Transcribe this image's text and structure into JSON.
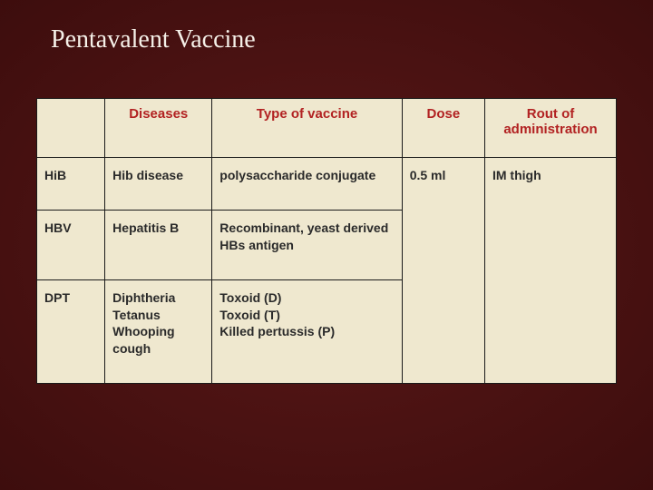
{
  "title": "Pentavalent Vaccine",
  "headers": {
    "c0": "",
    "c1": "Diseases",
    "c2": "Type of vaccine",
    "c3": "Dose",
    "c4": "Rout of administration"
  },
  "rows": {
    "r0": {
      "abbr": "HiB",
      "disease": "Hib disease",
      "type": "polysaccharide conjugate",
      "dose": "0.5 ml",
      "route": "IM thigh"
    },
    "r1": {
      "abbr": "HBV",
      "disease": "Hepatitis B",
      "type": "Recombinant, yeast derived HBs antigen"
    },
    "r2": {
      "abbr": "DPT",
      "disease": "Diphtheria Tetanus Whooping cough",
      "type": "Toxoid (D)\nToxoid (T)\nKilled pertussis (P)"
    }
  },
  "style": {
    "header_text_color": "#b22222",
    "cell_text_color": "#2a2a2a",
    "cell_bg": "#efe8cf",
    "border_color": "#1a1a1a",
    "title_color": "#f5f0e8",
    "slide_bg_center": "#5a1818",
    "slide_bg_edge": "#3d0d0d",
    "title_fontsize": 28,
    "header_fontsize": 15,
    "cell_fontsize": 14
  }
}
